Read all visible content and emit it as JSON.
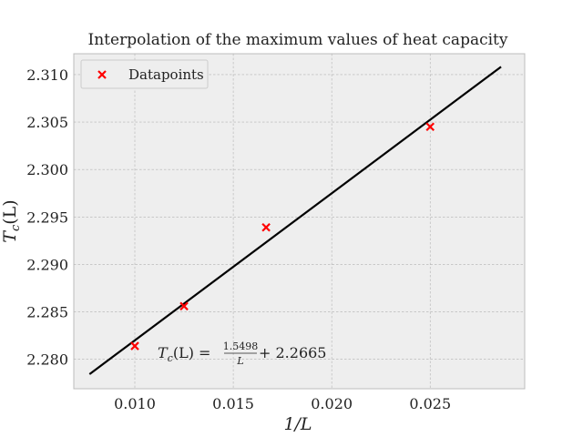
{
  "chart_data": {
    "type": "scatter",
    "title": "Interpolation of the maximum values of heat capacity",
    "xlabel": "1/L",
    "ylabel": "T",
    "ylabel_sub": "c",
    "ylabel_arg": "(L)",
    "xlim": [
      0.0069,
      0.0298
    ],
    "ylim": [
      2.2769,
      2.3122
    ],
    "xticks": [
      0.01,
      0.015,
      0.02,
      0.025
    ],
    "xtick_labels": [
      "0.010",
      "0.015",
      "0.020",
      "0.025"
    ],
    "yticks": [
      2.28,
      2.285,
      2.29,
      2.295,
      2.3,
      2.305,
      2.31
    ],
    "ytick_labels": [
      "2.280",
      "2.285",
      "2.290",
      "2.295",
      "2.300",
      "2.305",
      "2.310"
    ],
    "grid": true,
    "legend_placement": "top-left",
    "series": [
      {
        "name": "Datapoints",
        "kind": "scatter",
        "marker": "x",
        "color": "#ff0000",
        "x": [
          0.01,
          0.0125,
          0.016667,
          0.025
        ],
        "y": [
          2.2814,
          2.2856,
          2.2939,
          2.3045
        ]
      },
      {
        "kind": "line",
        "color": "#000000",
        "slope": 1.5498,
        "intercept": 2.2665,
        "x_range": [
          0.0077,
          0.0286
        ]
      }
    ],
    "annotation": {
      "lhs": "T",
      "lhs_sub": "c",
      "lhs_arg": "(L) =",
      "numerator": "1.5498",
      "denominator": "L",
      "rhs": "+ 2.2665"
    }
  }
}
